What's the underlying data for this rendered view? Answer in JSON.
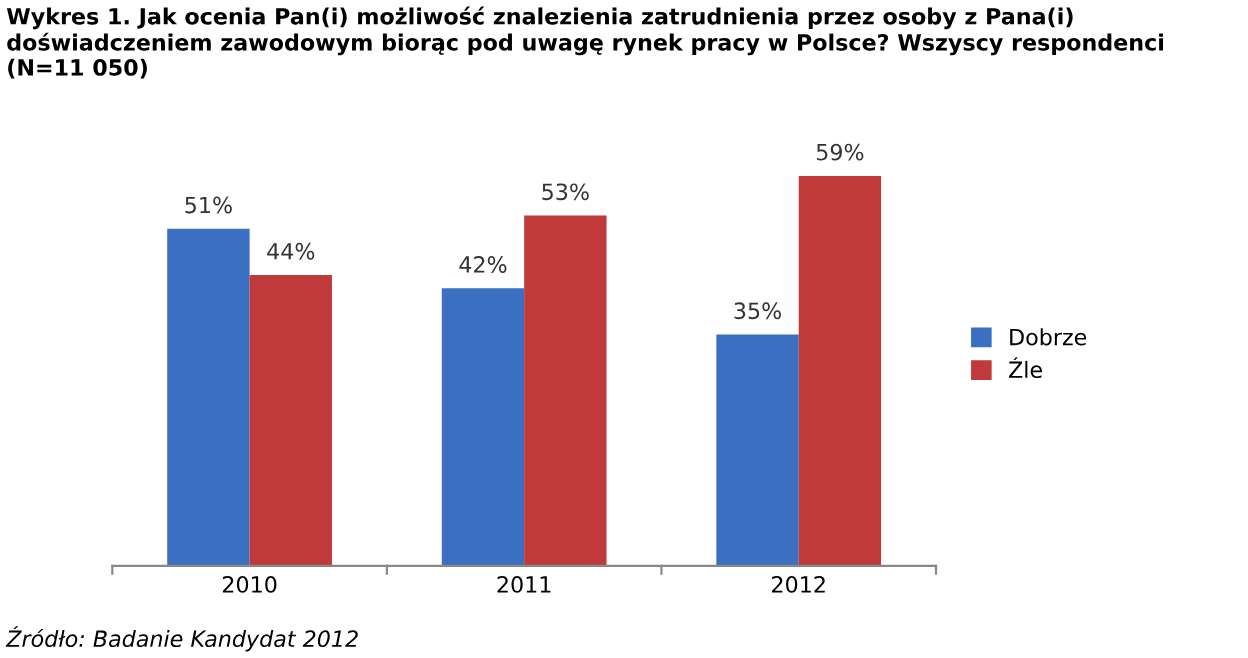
{
  "chart_data": {
    "type": "bar",
    "title": "Wykres 1. Jak ocenia Pan(i) możliwość znalezienia zatrudnienia przez osoby z Pana(i) doświadczeniem zawodowym biorąc pod uwagę rynek pracy w Polsce? Wszyscy respondenci (N=11 050)",
    "categories": [
      "2010",
      "2011",
      "2012"
    ],
    "series": [
      {
        "name": "Dobrze",
        "color": "#3b6fc1",
        "values": [
          51,
          42,
          35
        ],
        "value_labels": [
          "51%",
          "42%",
          "35%"
        ]
      },
      {
        "name": "Źle",
        "color": "#c0393b",
        "values": [
          44,
          53,
          59
        ],
        "value_labels": [
          "44%",
          "53%",
          "59%"
        ]
      }
    ],
    "legend": "right",
    "grid": false,
    "annotations": [
      "Źródło: Badanie Kandydat 2012"
    ]
  }
}
